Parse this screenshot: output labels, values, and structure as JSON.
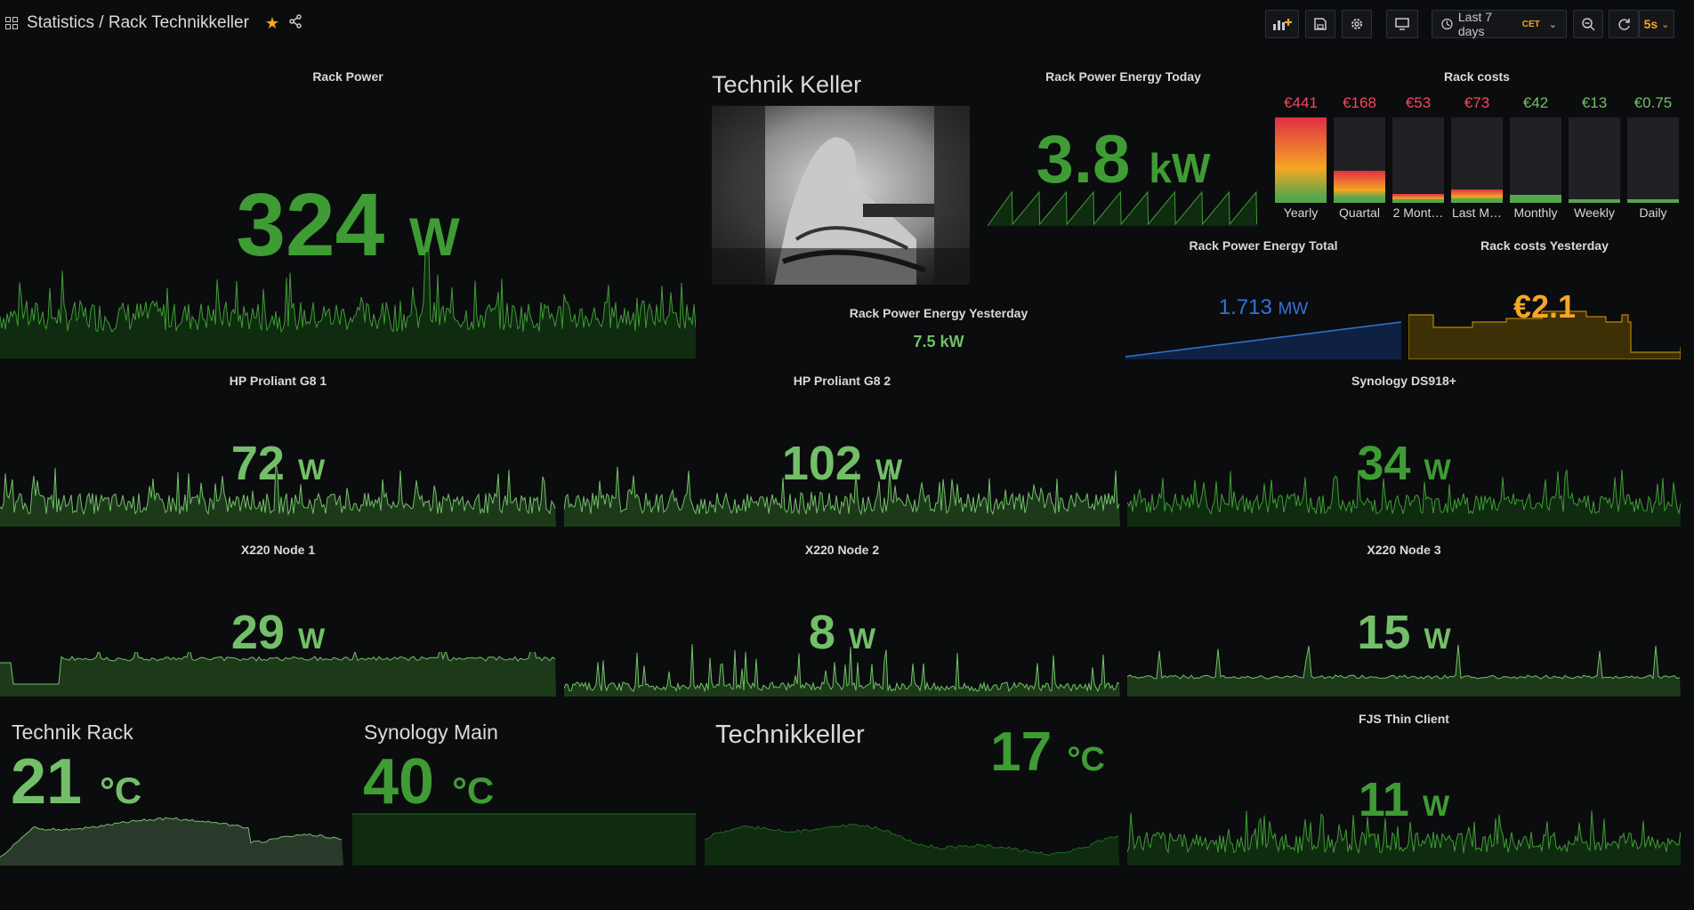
{
  "header": {
    "breadcrumb": "Statistics / Rack Technikkeller",
    "time_range": "Last 7 days",
    "timezone": "CET",
    "refresh": "5s"
  },
  "icons": {
    "grid": "apps-icon",
    "star": "star-icon",
    "share": "share-icon",
    "add_panel": "add-panel-icon",
    "save": "save-icon",
    "settings": "gear-icon",
    "tv": "monitor-icon",
    "clock": "clock-icon",
    "zoom": "zoom-out-icon",
    "refresh": "refresh-icon"
  },
  "colors": {
    "green": "#3f9c35",
    "light_green": "#73bf69",
    "red": "#f2495c",
    "orange": "#f5a623",
    "blue": "#3274d9"
  },
  "panels": {
    "rack_power": {
      "title": "Rack Power",
      "value": "324",
      "unit": "W"
    },
    "camera": {
      "title": "Technik Keller"
    },
    "energy_today": {
      "title": "Rack Power Energy Today",
      "value": "3.8",
      "unit": "kW"
    },
    "energy_yesterday": {
      "title": "Rack Power Energy Yesterday",
      "value": "7.5 kW"
    },
    "energy_total": {
      "title": "Rack Power Energy Total",
      "value": "1.713",
      "unit": "MW"
    },
    "costs": {
      "title": "Rack costs",
      "items": [
        {
          "label": "Yearly",
          "value": "€441",
          "color": "#f2495c",
          "fill": 1.0
        },
        {
          "label": "Quartal",
          "value": "€168",
          "color": "#f2495c",
          "fill": 0.38
        },
        {
          "label": "2 Mont…",
          "value": "€53",
          "color": "#f2495c",
          "fill": 0.1
        },
        {
          "label": "Last M…",
          "value": "€73",
          "color": "#f2495c",
          "fill": 0.16
        },
        {
          "label": "Monthly",
          "value": "€42",
          "color": "#73bf69",
          "fill": 0.09
        },
        {
          "label": "Weekly",
          "value": "€13",
          "color": "#73bf69",
          "fill": 0.03
        },
        {
          "label": "Daily",
          "value": "€0.75",
          "color": "#73bf69",
          "fill": 0.01
        }
      ]
    },
    "costs_yesterday": {
      "title": "Rack costs Yesterday",
      "value": "€2.1"
    },
    "hp1": {
      "title": "HP Proliant G8 1",
      "value": "72",
      "unit": "W"
    },
    "hp2": {
      "title": "HP Proliant G8 2",
      "value": "102",
      "unit": "W"
    },
    "synology": {
      "title": "Synology DS918+",
      "value": "34",
      "unit": "W"
    },
    "x1": {
      "title": "X220 Node 1",
      "value": "29",
      "unit": "W"
    },
    "x2": {
      "title": "X220 Node 2",
      "value": "8",
      "unit": "W"
    },
    "x3": {
      "title": "X220 Node 3",
      "value": "15",
      "unit": "W"
    },
    "temp_rack": {
      "title": "Technik Rack",
      "value": "21",
      "unit": "°C"
    },
    "temp_syn": {
      "title": "Synology Main",
      "value": "40",
      "unit": "°C"
    },
    "temp_keller": {
      "title": "Technikkeller",
      "value": "17",
      "unit": "°C"
    },
    "fjs": {
      "title": "FJS Thin Client",
      "value": "11",
      "unit": "W"
    }
  }
}
